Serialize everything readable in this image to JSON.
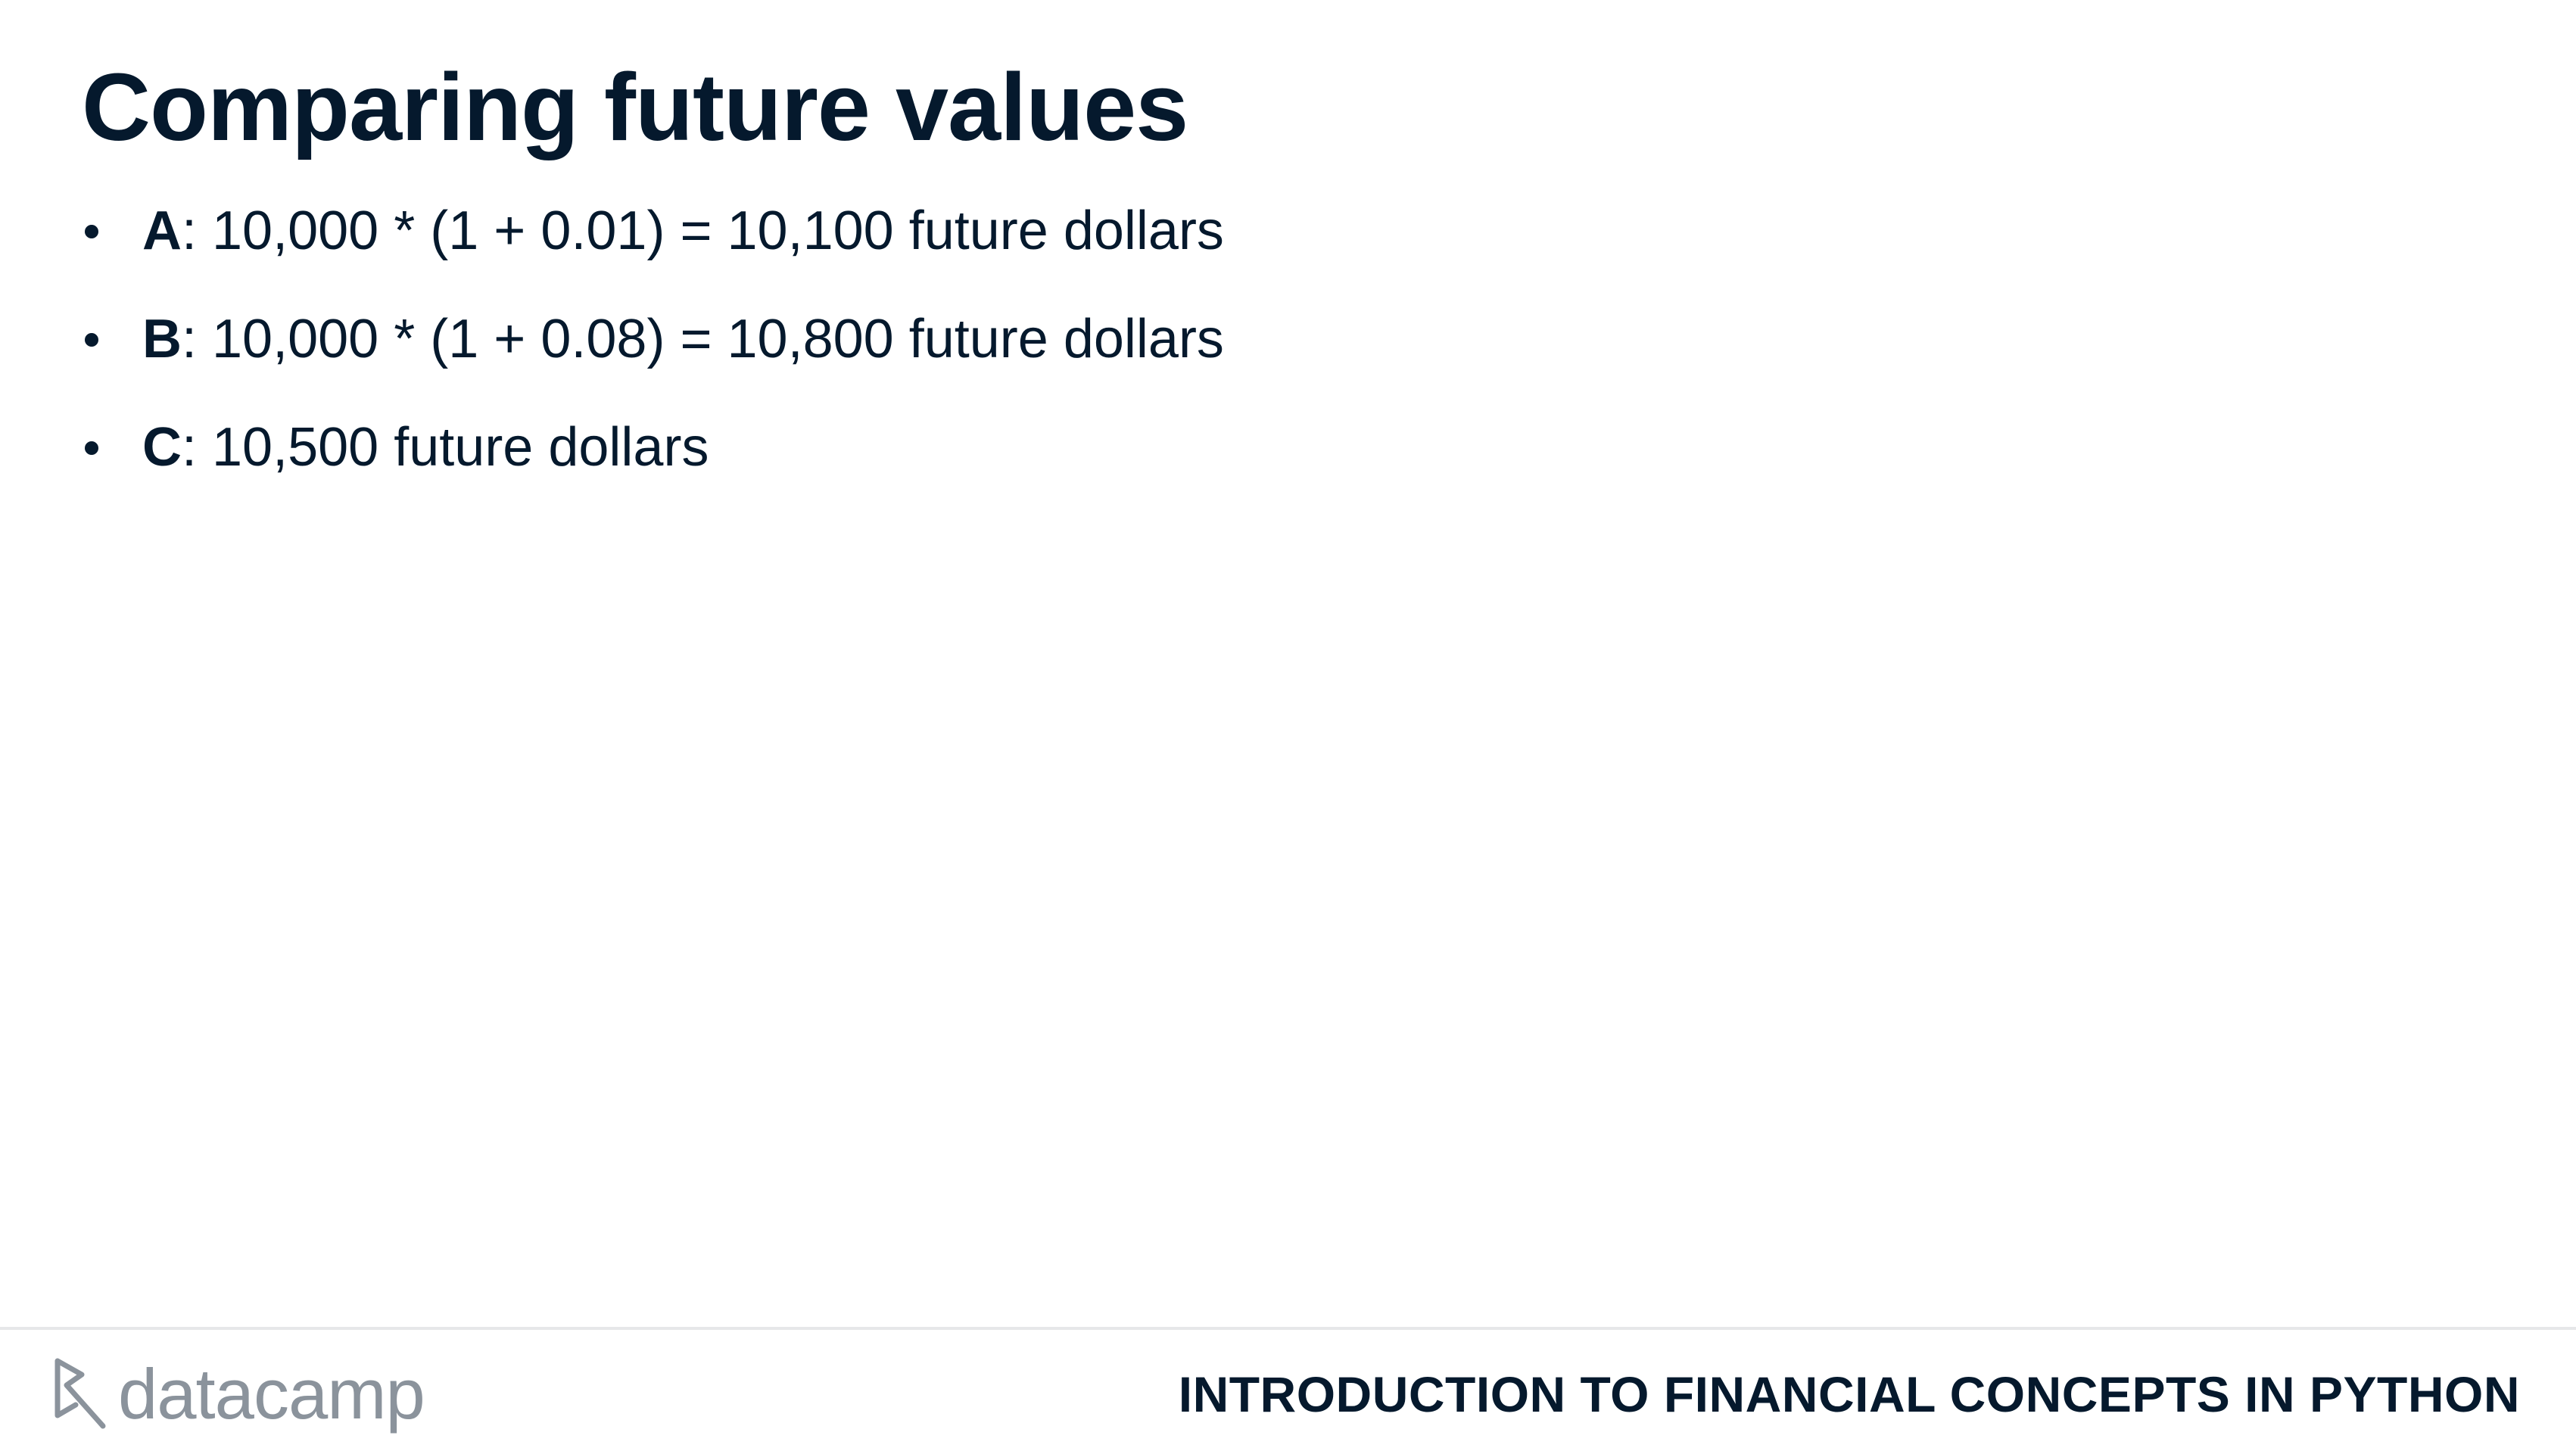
{
  "slide": {
    "title": "Comparing future values",
    "bullets": [
      {
        "key": "A",
        "text": ": 10,000 * (1 + 0.01) = 10,100 future dollars"
      },
      {
        "key": "B",
        "text": ": 10,000 * (1 + 0.08) = 10,800 future dollars"
      },
      {
        "key": "C",
        "text": ": 10,500 future dollars"
      }
    ]
  },
  "footer": {
    "logo_text": "datacamp",
    "logo_icon": "datacamp-logo-icon",
    "course_title": "INTRODUCTION TO FINANCIAL CONCEPTS IN PYTHON"
  },
  "colors": {
    "text": "#05192d",
    "logo": "#8b939c",
    "divider": "#e6e7e9",
    "background": "#ffffff"
  }
}
